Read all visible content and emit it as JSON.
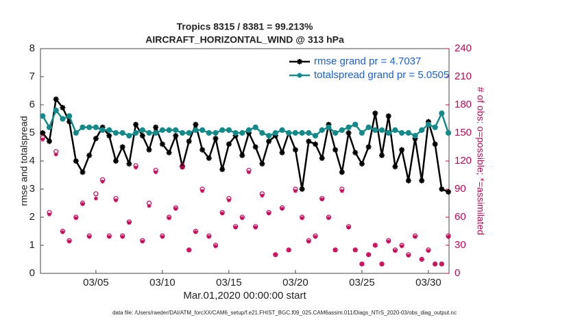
{
  "chart_data": {
    "type": "line",
    "title": "Tropics 8315 / 8381 = 99.213%",
    "subtitle": "AIRCRAFT_HORIZONTAL_WIND @ 313 hPa",
    "xlabel": "Mar.01,2020 00:00:00 start",
    "ylabel": "rmse and totalspread",
    "y2label": "# of obs: o=possible; *=assimilated",
    "footnote": "data file: /Users/raeder/DAI/ATM_forcXX/CAM6_setup/f.e21.FHIST_BGC.f09_025.CAM6assim.011/Diags_NTrS_2020-03/obs_diag_output.nc",
    "x": [
      1,
      1.5,
      2,
      2.5,
      3,
      3.5,
      4,
      4.5,
      5,
      5.5,
      6,
      6.5,
      7,
      7.5,
      8,
      8.5,
      9,
      9.5,
      10,
      10.5,
      11,
      11.5,
      12,
      12.5,
      13,
      13.5,
      14,
      14.5,
      15,
      15.5,
      16,
      16.5,
      17,
      17.5,
      18,
      18.5,
      19,
      19.5,
      20,
      20.5,
      21,
      21.5,
      22,
      22.5,
      23,
      23.5,
      24,
      24.5,
      25,
      25.5,
      26,
      26.5,
      27,
      27.5,
      28,
      28.5,
      29,
      29.5,
      30,
      30.5,
      31,
      31.5
    ],
    "xlim": [
      0.83,
      31.55
    ],
    "xticks": [
      {
        "value": 5,
        "label": "03/05"
      },
      {
        "value": 10,
        "label": "03/10"
      },
      {
        "value": 15,
        "label": "03/15"
      },
      {
        "value": 20,
        "label": "03/20"
      },
      {
        "value": 25,
        "label": "03/25"
      },
      {
        "value": 30,
        "label": "03/30"
      }
    ],
    "ylim": [
      0,
      8
    ],
    "yticks": [
      0,
      1,
      2,
      3,
      4,
      5,
      6,
      7,
      8
    ],
    "y2lim": [
      0,
      240
    ],
    "y2ticks": [
      0,
      30,
      60,
      90,
      120,
      150,
      180,
      210,
      240
    ],
    "y2color": "#cc0052",
    "legend": "upper right",
    "series": [
      {
        "name": "rmse grand pr = 4.7037",
        "color": "#000000",
        "marker": "*",
        "line": true,
        "values": [
          5.0,
          4.7,
          6.2,
          5.9,
          5.4,
          4.0,
          3.6,
          4.2,
          4.8,
          5.2,
          4.9,
          4.0,
          4.5,
          3.9,
          5.3,
          4.9,
          4.4,
          5.2,
          4.6,
          4.3,
          4.9,
          3.8,
          4.7,
          5.3,
          4.4,
          4.1,
          4.8,
          3.7,
          4.6,
          4.9,
          4.2,
          5.0,
          4.5,
          3.9,
          4.7,
          4.9,
          4.3,
          5.0,
          4.4,
          3.0,
          4.7,
          4.6,
          4.1,
          5.3,
          4.4,
          3.6,
          5.0,
          4.3,
          3.9,
          4.5,
          5.7,
          4.2,
          5.6,
          3.8,
          4.4,
          3.3,
          4.8,
          3.3,
          5.4,
          4.6,
          3.0,
          2.9
        ]
      },
      {
        "name": "totalspread grand pr = 5.0505",
        "color": "#138a8a",
        "marker": "o",
        "line": true,
        "values": [
          5.6,
          5.2,
          5.8,
          5.5,
          5.6,
          5.0,
          5.2,
          5.2,
          5.2,
          5.1,
          5.1,
          5.0,
          5.0,
          4.9,
          5.0,
          5.1,
          5.0,
          5.0,
          5.1,
          5.1,
          5.1,
          5.0,
          5.0,
          5.1,
          5.1,
          5.0,
          5.0,
          5.1,
          5.1,
          5.0,
          5.0,
          5.1,
          5.2,
          5.0,
          4.9,
          5.0,
          5.1,
          5.0,
          5.0,
          5.0,
          5.0,
          4.9,
          5.1,
          5.2,
          5.0,
          5.1,
          5.2,
          5.3,
          5.0,
          5.2,
          5.1,
          5.1,
          5.0,
          5.1,
          5.0,
          5.0,
          4.9,
          5.1,
          5.3,
          5.2,
          5.7,
          5.0
        ]
      },
      {
        "color": "#cc0052",
        "marker": "o",
        "line": false,
        "axis": "y2",
        "values": [
          145,
          65,
          130,
          45,
          35,
          60,
          75,
          40,
          85,
          100,
          40,
          80,
          40,
          55,
          115,
          35,
          75,
          110,
          40,
          60,
          70,
          115,
          25,
          45,
          90,
          40,
          30,
          65,
          80,
          50,
          60,
          110,
          50,
          85,
          65,
          20,
          70,
          25,
          90,
          60,
          35,
          40,
          80,
          60,
          25,
          90,
          50,
          25,
          10,
          20,
          30,
          10,
          35,
          25,
          30,
          20,
          40,
          15,
          25,
          10,
          10,
          40
        ]
      },
      {
        "color": "#cc0052",
        "marker": "*",
        "line": false,
        "axis": "y2",
        "values": [
          143,
          63,
          127,
          44,
          34,
          59,
          74,
          39,
          80,
          98,
          39,
          78,
          39,
          54,
          113,
          34,
          72,
          108,
          39,
          59,
          69,
          113,
          25,
          44,
          88,
          39,
          29,
          64,
          78,
          49,
          59,
          108,
          49,
          83,
          64,
          20,
          69,
          25,
          88,
          59,
          34,
          39,
          79,
          59,
          25,
          88,
          49,
          25,
          10,
          20,
          30,
          10,
          34,
          24,
          29,
          19,
          39,
          15,
          24,
          10,
          10,
          39
        ]
      }
    ]
  }
}
